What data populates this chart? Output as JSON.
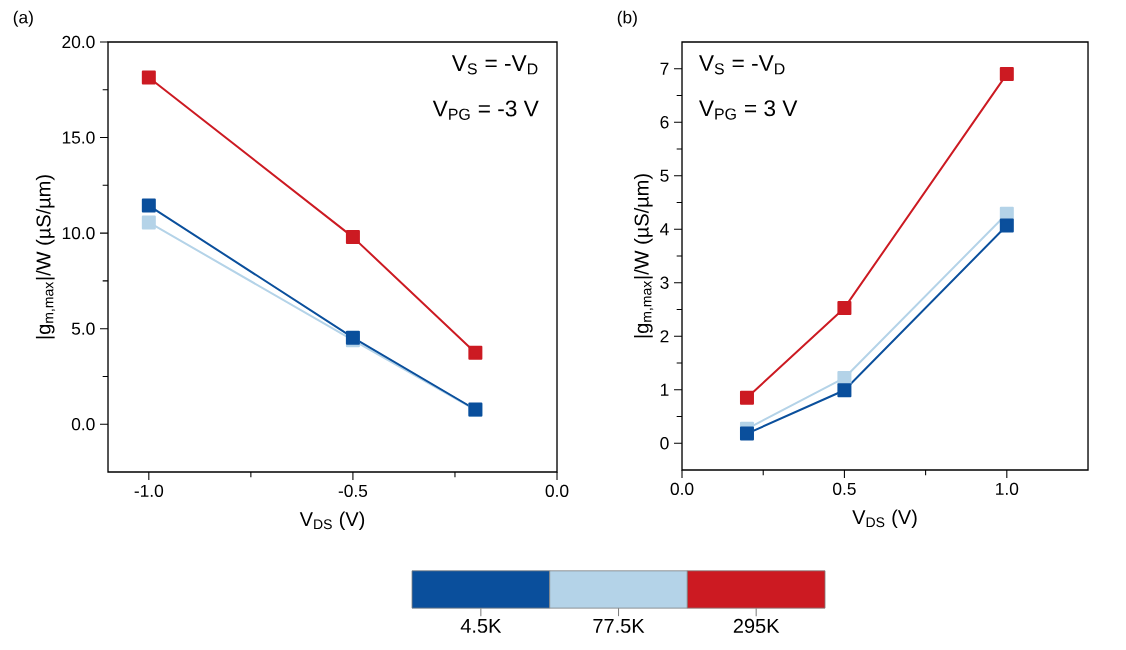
{
  "chart_data": [
    {
      "type": "line",
      "xlabel": "V$_{DS}$ (V)",
      "ylabel": "|g$_{m,max}$|/W (µS/µm)",
      "annotations": [
        "(a)",
        "V$_{S}$ = -V$_{D}$",
        "V$_{PG}$ = -3 V"
      ],
      "x": [
        -1.0,
        -0.5,
        -0.2
      ],
      "series": [
        {
          "name": "4.5K",
          "color": "#0a4f9c",
          "values": [
            11.44,
            4.53,
            0.77
          ]
        },
        {
          "name": "77.5K",
          "color": "#b4d3e8",
          "values": [
            10.56,
            4.4,
            0.75
          ]
        },
        {
          "name": "295K",
          "color": "#cc1a22",
          "values": [
            18.14,
            9.79,
            3.74
          ]
        }
      ],
      "xlim": [
        -1.1,
        0.0
      ],
      "ylim": [
        -2.5,
        20.0
      ],
      "xticks": [
        {
          "value": -1.0,
          "label": "-1.0"
        },
        {
          "value": -0.5,
          "label": "-0.5"
        },
        {
          "value": 0.0,
          "label": "0.0"
        }
      ],
      "yticks": [
        {
          "value": 0,
          "label": "0.0"
        },
        {
          "value": 5,
          "label": "5.0"
        },
        {
          "value": 10,
          "label": "10.0"
        },
        {
          "value": 15,
          "label": "15.0"
        },
        {
          "value": 20,
          "label": "20.0"
        }
      ],
      "marker": "square",
      "line_style": "solid",
      "legend": "bottom",
      "grid": false
    },
    {
      "type": "line",
      "xlabel": "V$_{DS}$ (V)",
      "ylabel": "|g$_{m,max}$|/W (µS/µm)",
      "annotations": [
        "(b)",
        "V$_{S}$ = -V$_{D}$",
        "V$_{PG}$ = 3 V"
      ],
      "x": [
        0.2,
        0.5,
        1.0
      ],
      "series": [
        {
          "color": "#0a4f9c",
          "values": [
            0.18,
            0.99,
            4.07
          ]
        },
        {
          "color": "#b4d3e8",
          "values": [
            0.27,
            1.22,
            4.29
          ]
        },
        {
          "color": "#cc1a22",
          "values": [
            0.85,
            2.53,
            6.9
          ]
        }
      ],
      "xlim": [
        0.0,
        1.25
      ],
      "ylim": [
        -0.5,
        7.5
      ],
      "xticks": [
        {
          "value": 0.0,
          "label": "0.0"
        },
        {
          "value": 0.5,
          "label": "0.5"
        },
        {
          "value": 1.0,
          "label": "1.0"
        }
      ],
      "yticks": [
        0,
        1,
        2,
        3,
        4,
        5,
        6,
        7
      ],
      "marker": "square",
      "line_style": "solid",
      "grid": false
    }
  ]
}
